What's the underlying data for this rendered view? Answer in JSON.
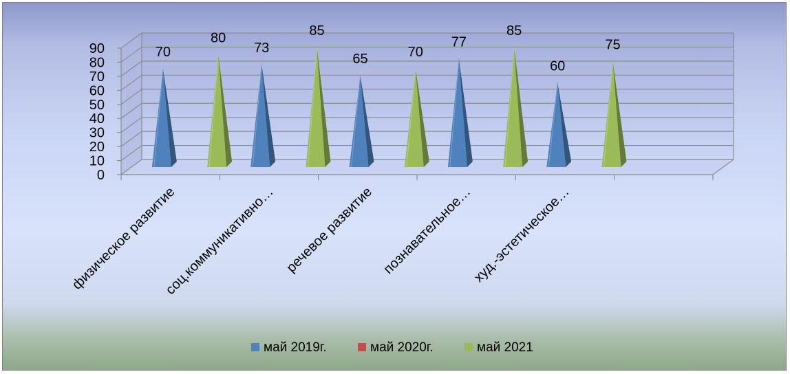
{
  "chart_data": {
    "type": "bar",
    "bar_shape": "pyramid-3d",
    "title": "",
    "xlabel": "",
    "ylabel": "",
    "categories": [
      "физическое развитие",
      "соц.коммуникативно…",
      "речевое развитие",
      "познавательное…",
      "худ.-эстетическое…"
    ],
    "series": [
      {
        "name": "май 2019г.",
        "color": "#4f81bd",
        "values": [
          70,
          73,
          65,
          77,
          60
        ]
      },
      {
        "name": "май 2020г.",
        "color": "#c0504d",
        "values": [
          null,
          null,
          null,
          null,
          null
        ]
      },
      {
        "name": "май 2021",
        "color": "#9bbb59",
        "values": [
          80,
          85,
          70,
          85,
          75
        ]
      }
    ],
    "ylim": [
      0,
      90
    ],
    "yticks": [
      0,
      10,
      20,
      30,
      40,
      50,
      60,
      70,
      80,
      90
    ],
    "grid": true,
    "legend_position": "bottom",
    "data_labels": true
  }
}
